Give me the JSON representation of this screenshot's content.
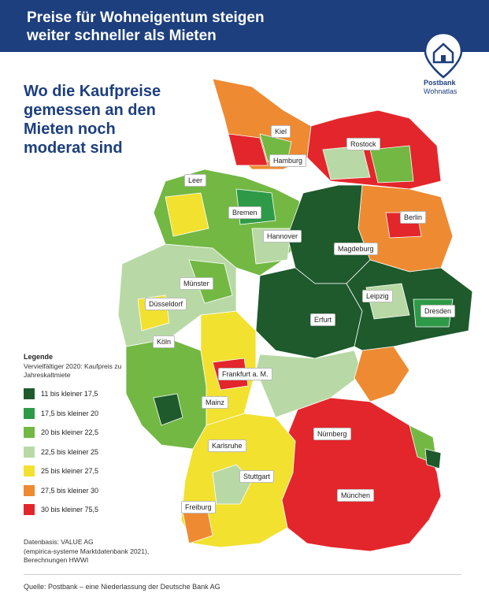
{
  "header": {
    "title_line1": "Preise für Wohneigentum steigen",
    "title_line2": "weiter schneller als Mieten"
  },
  "logo": {
    "brand": "Postbank",
    "product": "Wohnatlas",
    "icon": "house-pin-icon"
  },
  "subtitle": {
    "line1": "Wo die Kaufpreise",
    "line2": "gemessen an den",
    "line3": "Mieten noch",
    "line4": "moderat sind"
  },
  "cities": [
    {
      "name": "Kiel"
    },
    {
      "name": "Hamburg"
    },
    {
      "name": "Rostock"
    },
    {
      "name": "Leer"
    },
    {
      "name": "Bremen"
    },
    {
      "name": "Berlin"
    },
    {
      "name": "Hannover"
    },
    {
      "name": "Magdeburg"
    },
    {
      "name": "Münster"
    },
    {
      "name": "Leipzig"
    },
    {
      "name": "Düsseldorf"
    },
    {
      "name": "Dresden"
    },
    {
      "name": "Erfurt"
    },
    {
      "name": "Köln"
    },
    {
      "name": "Frankfurt a. M."
    },
    {
      "name": "Mainz"
    },
    {
      "name": "Nürnberg"
    },
    {
      "name": "Karlsruhe"
    },
    {
      "name": "Stuttgart"
    },
    {
      "name": "München"
    },
    {
      "name": "Freiburg"
    }
  ],
  "legend": {
    "title": "Legende",
    "subtitle": "Vervielfältiger 2020: Kaufpreis zu Jahreskaltmiete",
    "items": [
      {
        "label": "11 bis kleiner 17,5",
        "color": "#1e5a2c"
      },
      {
        "label": "17,5 bis kleiner 20",
        "color": "#2e9a47"
      },
      {
        "label": "20 bis kleiner 22,5",
        "color": "#72b843"
      },
      {
        "label": "22,5 bis kleiner 25",
        "color": "#b8d9a5"
      },
      {
        "label": "25 bis kleiner 27,5",
        "color": "#f2e12f"
      },
      {
        "label": "27,5 bis kleiner 30",
        "color": "#ee8a32"
      },
      {
        "label": "30 bis kleiner 75,5",
        "color": "#e3262b"
      }
    ]
  },
  "datasource": {
    "line1": "Datenbasis: VALUE AG",
    "line2": "(empirica-systeme Marktdatenbank 2021),",
    "line3": "Berechnungen HWWI"
  },
  "footer": "Quelle: Postbank – eine Niederlassung der Deutsche Bank AG"
}
